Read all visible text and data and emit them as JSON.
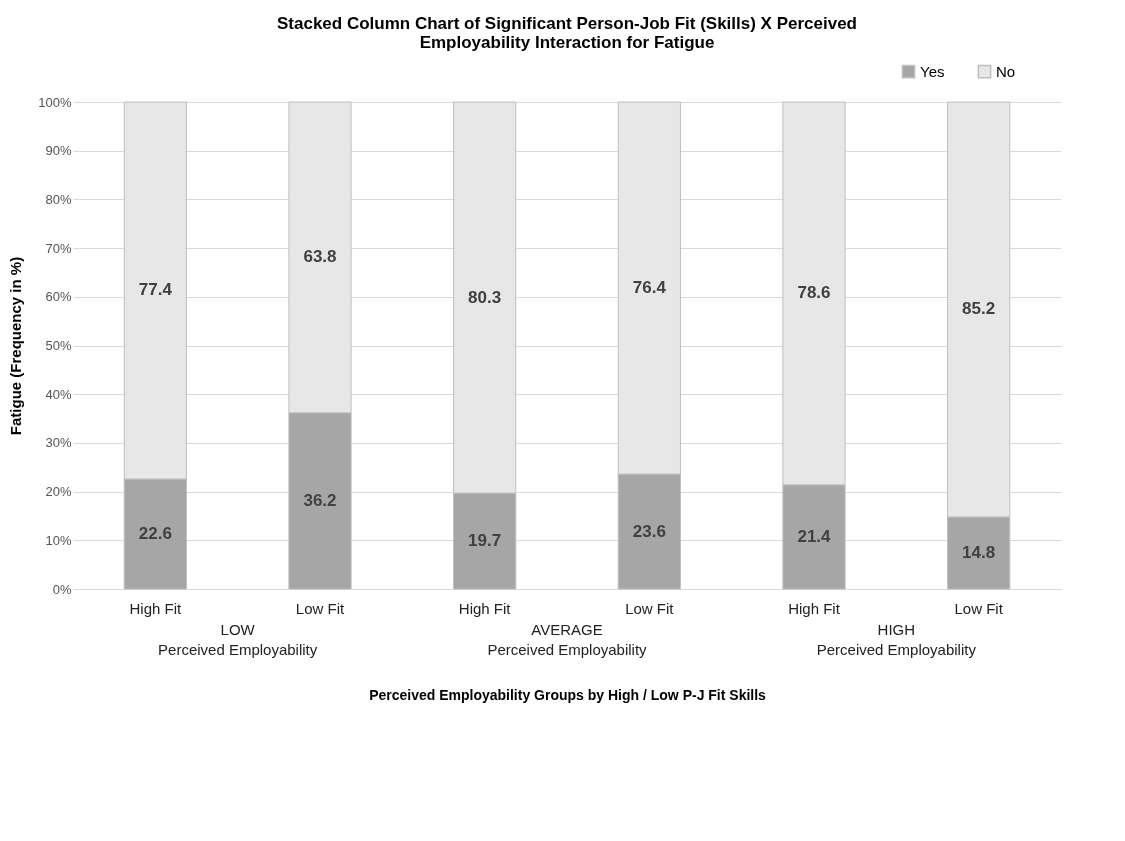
{
  "chart_data": {
    "type": "bar",
    "stacked": true,
    "title": "Stacked Column Chart of Significant Person-Job Fit (Skills)  X Perceived\nEmployability Interaction for Fatigue",
    "xlabel": "Perceived Employability Groups by High / Low P-J Fit Skills",
    "ylabel": "Fatigue  (Frequency in %)",
    "categories": [
      "High Fit",
      "Low Fit",
      "High Fit",
      "Low Fit",
      "High Fit",
      "Low Fit"
    ],
    "series": [
      {
        "name": "Yes",
        "color": "#a6a6a6",
        "values": [
          22.6,
          36.2,
          19.7,
          23.6,
          21.4,
          14.8
        ]
      },
      {
        "name": "No",
        "color": "#e7e7e7",
        "values": [
          77.4,
          63.8,
          80.3,
          76.4,
          78.6,
          85.2
        ]
      }
    ],
    "annotations": [
      "LOW\nPerceived Employability",
      "AVERAGE\nPerceived Employability",
      "HIGH\nPerceived Employability"
    ],
    "ylim": [
      0,
      100
    ],
    "yticks": [
      {
        "value": 0,
        "label": "0%"
      },
      {
        "value": 10,
        "label": "10%"
      },
      {
        "value": 20,
        "label": "20%"
      },
      {
        "value": 30,
        "label": "30%"
      },
      {
        "value": 40,
        "label": "40%"
      },
      {
        "value": 50,
        "label": "50%"
      },
      {
        "value": 60,
        "label": "60%"
      },
      {
        "value": 70,
        "label": "70%"
      },
      {
        "value": 80,
        "label": "80%"
      },
      {
        "value": 90,
        "label": "90%"
      },
      {
        "value": 100,
        "label": "100%"
      }
    ],
    "grid": "y",
    "legend": "top right",
    "data_labels": true
  }
}
